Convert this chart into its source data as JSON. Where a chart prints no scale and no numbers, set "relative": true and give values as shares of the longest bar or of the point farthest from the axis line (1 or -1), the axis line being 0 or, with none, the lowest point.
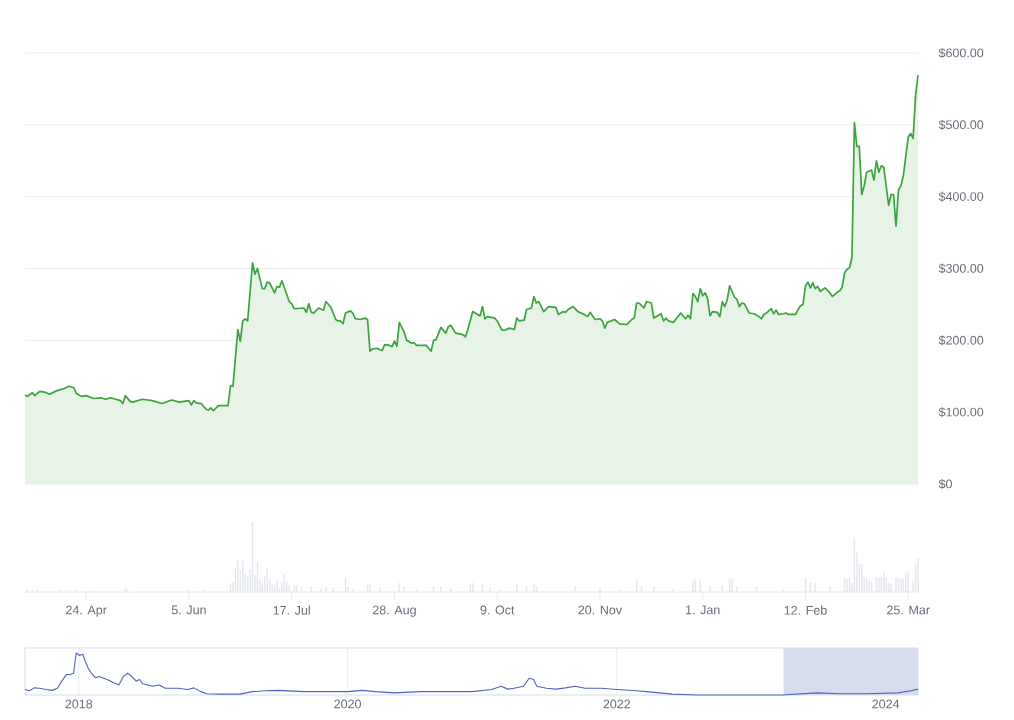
{
  "chart_data": [
    {
      "type": "area",
      "tick_labels": "y",
      "grid": "y",
      "color": "#3da33f",
      "xlim": [
        "2023-03-30",
        "2024-03-29"
      ],
      "ylim": [
        0,
        600
      ],
      "yticks": [
        {
          "value": 0,
          "label": "$0"
        },
        {
          "value": 100,
          "label": "$100.00"
        },
        {
          "value": 200,
          "label": "$200.00"
        },
        {
          "value": 300,
          "label": "$300.00"
        },
        {
          "value": 400,
          "label": "$400.00"
        },
        {
          "value": 500,
          "label": "$500.00"
        },
        {
          "value": 600,
          "label": "$600.00"
        }
      ],
      "x": [
        "2023-03-30",
        "2023-03-31",
        "2023-04-02",
        "2023-04-03",
        "2023-04-05",
        "2023-04-07",
        "2023-04-09",
        "2023-04-12",
        "2023-04-15",
        "2023-04-17",
        "2023-04-19",
        "2023-04-20",
        "2023-04-22",
        "2023-04-24",
        "2023-04-27",
        "2023-04-30",
        "2023-05-02",
        "2023-05-04",
        "2023-05-06",
        "2023-05-08",
        "2023-05-09",
        "2023-05-10",
        "2023-05-12",
        "2023-05-13",
        "2023-05-17",
        "2023-05-21",
        "2023-05-25",
        "2023-05-29",
        "2023-06-01",
        "2023-06-05",
        "2023-06-06",
        "2023-06-07",
        "2023-06-08",
        "2023-06-10",
        "2023-06-12",
        "2023-06-13",
        "2023-06-14",
        "2023-06-15",
        "2023-06-17",
        "2023-06-21",
        "2023-06-22",
        "2023-06-23",
        "2023-06-25",
        "2023-06-26",
        "2023-06-27",
        "2023-06-28",
        "2023-06-29",
        "2023-07-01",
        "2023-07-02",
        "2023-07-03",
        "2023-07-05",
        "2023-07-06",
        "2023-07-07",
        "2023-07-08",
        "2023-07-10",
        "2023-07-11",
        "2023-07-12",
        "2023-07-13",
        "2023-07-16",
        "2023-07-17",
        "2023-07-18",
        "2023-07-22",
        "2023-07-23",
        "2023-07-24",
        "2023-07-25",
        "2023-07-26",
        "2023-07-28",
        "2023-07-30",
        "2023-07-31",
        "2023-08-02",
        "2023-08-04",
        "2023-08-05",
        "2023-08-06",
        "2023-08-07",
        "2023-08-08",
        "2023-08-10",
        "2023-08-11",
        "2023-08-12",
        "2023-08-14",
        "2023-08-16",
        "2023-08-17",
        "2023-08-18",
        "2023-08-19",
        "2023-08-21",
        "2023-08-22",
        "2023-08-23",
        "2023-08-24",
        "2023-08-26",
        "2023-08-27",
        "2023-08-28",
        "2023-08-29",
        "2023-08-30",
        "2023-09-01",
        "2023-09-02",
        "2023-09-04",
        "2023-09-05",
        "2023-09-06",
        "2023-09-10",
        "2023-09-11",
        "2023-09-12",
        "2023-09-13",
        "2023-09-14",
        "2023-09-16",
        "2023-09-18",
        "2023-09-19",
        "2023-09-20",
        "2023-09-22",
        "2023-09-25",
        "2023-09-26",
        "2023-09-27",
        "2023-09-29",
        "2023-10-01",
        "2023-10-02",
        "2023-10-03",
        "2023-10-04",
        "2023-10-05",
        "2023-10-08",
        "2023-10-09",
        "2023-10-11",
        "2023-10-12",
        "2023-10-14",
        "2023-10-16",
        "2023-10-17",
        "2023-10-18",
        "2023-10-20",
        "2023-10-21",
        "2023-10-23",
        "2023-10-24",
        "2023-10-25",
        "2023-10-26",
        "2023-10-28",
        "2023-10-30",
        "2023-11-02",
        "2023-11-03",
        "2023-11-05",
        "2023-11-06",
        "2023-11-07",
        "2023-11-09",
        "2023-11-11",
        "2023-11-13",
        "2023-11-15",
        "2023-11-16",
        "2023-11-18",
        "2023-11-20",
        "2023-11-21",
        "2023-11-22",
        "2023-11-23",
        "2023-11-26",
        "2023-11-28",
        "2023-12-01",
        "2023-12-03",
        "2023-12-04",
        "2023-12-05",
        "2023-12-06",
        "2023-12-08",
        "2023-12-09",
        "2023-12-11",
        "2023-12-12",
        "2023-12-15",
        "2023-12-16",
        "2023-12-17",
        "2023-12-18",
        "2023-12-20",
        "2023-12-23",
        "2023-12-25",
        "2023-12-26",
        "2023-12-27",
        "2023-12-28",
        "2023-12-29",
        "2023-12-30",
        "2023-12-31",
        "2024-01-01",
        "2024-01-02",
        "2024-01-03",
        "2024-01-04",
        "2024-01-05",
        "2024-01-07",
        "2024-01-08",
        "2024-01-09",
        "2024-01-10",
        "2024-01-11",
        "2024-01-12",
        "2024-01-14",
        "2024-01-15",
        "2024-01-16",
        "2024-01-17",
        "2024-01-18",
        "2024-01-20",
        "2024-01-22",
        "2024-01-24",
        "2024-01-25",
        "2024-01-26",
        "2024-01-27",
        "2024-01-29",
        "2024-01-30",
        "2024-01-31",
        "2024-02-01",
        "2024-02-03",
        "2024-02-04",
        "2024-02-05",
        "2024-02-08",
        "2024-02-09",
        "2024-02-10",
        "2024-02-11",
        "2024-02-12",
        "2024-02-13",
        "2024-02-14",
        "2024-02-15",
        "2024-02-16",
        "2024-02-17",
        "2024-02-18",
        "2024-02-20",
        "2024-02-22",
        "2024-02-23",
        "2024-02-25",
        "2024-02-26",
        "2024-02-27",
        "2024-02-28",
        "2024-02-29",
        "2024-03-01",
        "2024-03-02",
        "2024-03-03",
        "2024-03-04",
        "2024-03-05",
        "2024-03-06",
        "2024-03-07",
        "2024-03-08",
        "2024-03-10",
        "2024-03-11",
        "2024-03-12",
        "2024-03-13",
        "2024-03-14",
        "2024-03-15",
        "2024-03-17",
        "2024-03-18",
        "2024-03-19",
        "2024-03-20",
        "2024-03-21",
        "2024-03-22",
        "2024-03-23",
        "2024-03-25",
        "2024-03-26",
        "2024-03-27",
        "2024-03-28",
        "2024-03-29"
      ],
      "values": [
        124,
        122,
        127,
        123,
        129,
        128,
        125,
        130,
        133,
        136,
        134,
        126,
        122,
        123,
        119,
        120,
        118,
        120,
        118,
        116,
        112,
        123,
        115,
        114,
        118,
        116,
        112,
        117,
        114,
        116,
        110,
        116,
        113,
        112,
        104,
        103,
        106,
        102,
        109,
        109,
        137,
        136,
        215,
        199,
        227,
        230,
        227,
        308,
        292,
        300,
        272,
        272,
        281,
        280,
        266,
        275,
        274,
        283,
        254,
        251,
        244,
        245,
        239,
        251,
        239,
        238,
        245,
        242,
        254,
        246,
        229,
        227,
        227,
        223,
        238,
        241,
        238,
        230,
        229,
        231,
        229,
        185,
        188,
        189,
        187,
        186,
        194,
        193,
        191,
        199,
        192,
        225,
        211,
        200,
        196,
        197,
        193,
        193,
        189,
        185,
        200,
        201,
        218,
        210,
        219,
        221,
        210,
        208,
        205,
        215,
        240,
        236,
        234,
        247,
        230,
        233,
        231,
        227,
        214,
        214,
        217,
        215,
        231,
        227,
        228,
        243,
        245,
        261,
        252,
        254,
        240,
        247,
        246,
        236,
        240,
        239,
        243,
        247,
        240,
        237,
        233,
        239,
        229,
        230,
        227,
        217,
        225,
        229,
        223,
        222,
        229,
        231,
        252,
        252,
        245,
        254,
        252,
        231,
        237,
        227,
        231,
        227,
        225,
        238,
        230,
        235,
        230,
        265,
        261,
        254,
        272,
        262,
        266,
        258,
        234,
        240,
        239,
        233,
        254,
        247,
        256,
        276,
        260,
        257,
        247,
        252,
        251,
        238,
        237,
        233,
        230,
        236,
        238,
        244,
        237,
        242,
        236,
        237,
        238,
        236,
        236,
        243,
        248,
        250,
        276,
        281,
        273,
        280,
        272,
        275,
        268,
        273,
        266,
        261,
        267,
        269,
        274,
        294,
        299,
        301,
        315,
        503,
        470,
        470,
        403,
        415,
        434,
        437,
        423,
        450,
        434,
        443,
        441,
        388,
        403,
        403,
        359,
        409,
        415,
        429,
        483,
        488,
        481,
        541,
        569
      ]
    },
    {
      "type": "bar",
      "relative": true,
      "color": "#e6e8ef",
      "xlim": [
        "2023-03-30",
        "2024-03-29"
      ],
      "xticks": [
        {
          "value": "2023-04-24",
          "label": "24. Apr"
        },
        {
          "value": "2023-06-05",
          "label": "5. Jun"
        },
        {
          "value": "2023-07-17",
          "label": "17. Jul"
        },
        {
          "value": "2023-08-28",
          "label": "28. Aug"
        },
        {
          "value": "2023-10-09",
          "label": "9. Oct"
        },
        {
          "value": "2023-11-20",
          "label": "20. Nov"
        },
        {
          "value": "2024-01-01",
          "label": "1. Jan"
        },
        {
          "value": "2024-02-12",
          "label": "12. Feb"
        },
        {
          "value": "2024-03-25",
          "label": "25. Mar"
        }
      ],
      "x": [
        "2023-03-31",
        "2023-04-02",
        "2023-04-04",
        "2023-04-13",
        "2023-04-16",
        "2023-04-20",
        "2023-04-28",
        "2023-05-10",
        "2023-05-11",
        "2023-06-05",
        "2023-06-11",
        "2023-06-22",
        "2023-06-23",
        "2023-06-24",
        "2023-06-25",
        "2023-06-26",
        "2023-06-27",
        "2023-06-28",
        "2023-06-29",
        "2023-06-30",
        "2023-07-01",
        "2023-07-02",
        "2023-07-03",
        "2023-07-04",
        "2023-07-05",
        "2023-07-06",
        "2023-07-07",
        "2023-07-08",
        "2023-07-09",
        "2023-07-10",
        "2023-07-11",
        "2023-07-12",
        "2023-07-13",
        "2023-07-14",
        "2023-07-15",
        "2023-07-16",
        "2023-07-18",
        "2023-07-19",
        "2023-07-21",
        "2023-07-25",
        "2023-07-29",
        "2023-07-31",
        "2023-08-03",
        "2023-08-08",
        "2023-08-09",
        "2023-08-11",
        "2023-08-17",
        "2023-08-18",
        "2023-08-22",
        "2023-08-30",
        "2023-09-01",
        "2023-09-06",
        "2023-09-13",
        "2023-09-16",
        "2023-09-20",
        "2023-09-28",
        "2023-09-29",
        "2023-10-03",
        "2023-10-06",
        "2023-10-10",
        "2023-10-17",
        "2023-10-21",
        "2023-10-24",
        "2023-10-25",
        "2023-11-10",
        "2023-11-20",
        "2023-11-28",
        "2023-12-05",
        "2023-12-07",
        "2023-12-12",
        "2023-12-20",
        "2023-12-28",
        "2023-12-29",
        "2023-12-31",
        "2024-01-04",
        "2024-01-09",
        "2024-01-12",
        "2024-01-13",
        "2024-01-15",
        "2024-01-23",
        "2024-02-03",
        "2024-02-12",
        "2024-02-14",
        "2024-02-16",
        "2024-02-22",
        "2024-02-28",
        "2024-02-29",
        "2024-03-01",
        "2024-03-02",
        "2024-03-03",
        "2024-03-04",
        "2024-03-05",
        "2024-03-06",
        "2024-03-07",
        "2024-03-08",
        "2024-03-09",
        "2024-03-10",
        "2024-03-12",
        "2024-03-13",
        "2024-03-14",
        "2024-03-15",
        "2024-03-16",
        "2024-03-17",
        "2024-03-18",
        "2024-03-20",
        "2024-03-21",
        "2024-03-22",
        "2024-03-23",
        "2024-03-24",
        "2024-03-25",
        "2024-03-27",
        "2024-03-28",
        "2024-03-29"
      ],
      "values": [
        0.04,
        0.03,
        0.04,
        0.03,
        0.03,
        0.03,
        0.03,
        0.06,
        0.04,
        0.03,
        0.04,
        0.13,
        0.14,
        0.35,
        0.47,
        0.3,
        0.45,
        0.27,
        0.22,
        0.33,
        1,
        0.25,
        0.44,
        0.18,
        0.13,
        0.23,
        0.35,
        0.18,
        0.11,
        0.11,
        0.18,
        0.06,
        0.14,
        0.25,
        0.15,
        0.1,
        0.1,
        0.1,
        0.07,
        0.07,
        0.05,
        0.08,
        0.06,
        0.21,
        0.07,
        0.05,
        0.1,
        0.11,
        0.06,
        0.13,
        0.07,
        0.03,
        0.07,
        0.08,
        0.05,
        0.12,
        0.13,
        0.12,
        0.06,
        0.04,
        0.13,
        0.09,
        0.11,
        0.07,
        0.09,
        0.06,
        0.04,
        0.17,
        0.09,
        0.07,
        0.05,
        0.16,
        0.18,
        0.17,
        0.09,
        0.09,
        0.18,
        0.19,
        0.07,
        0.07,
        0.04,
        0.2,
        0.14,
        0.13,
        0.07,
        0.21,
        0.19,
        0.2,
        0.13,
        0.76,
        0.56,
        0.4,
        0.39,
        0.21,
        0.2,
        0.16,
        0.15,
        0.21,
        0.21,
        0.21,
        0.28,
        0.21,
        0.13,
        0.12,
        0.21,
        0.2,
        0.19,
        0.19,
        0.27,
        0.29,
        0.16,
        0.4,
        0.49
      ]
    },
    {
      "type": "line",
      "relative": true,
      "color": "#4e64bf",
      "grid": "x",
      "xlim": [
        "2017-08-08",
        "2024-03-29"
      ],
      "xticks": [
        {
          "value": "2018-01-01",
          "label": "2018"
        },
        {
          "value": "2020-01-01",
          "label": "2020"
        },
        {
          "value": "2022-01-01",
          "label": "2022"
        },
        {
          "value": "2024-01-01",
          "label": "2024"
        }
      ],
      "bands": [
        {
          "axis": "x",
          "from": "2023-03-30",
          "to": "2024-03-29",
          "color": "#d7ddef"
        }
      ],
      "x": [
        "2017-08-08",
        "2017-08-20",
        "2017-09-02",
        "2017-09-16",
        "2017-10-04",
        "2017-10-21",
        "2017-11-04",
        "2017-11-16",
        "2017-11-29",
        "2017-12-09",
        "2017-12-18",
        "2017-12-25",
        "2018-01-03",
        "2018-01-12",
        "2018-01-17",
        "2018-01-26",
        "2018-02-04",
        "2018-02-16",
        "2018-02-25",
        "2018-03-19",
        "2018-04-06",
        "2018-04-20",
        "2018-05-02",
        "2018-05-14",
        "2018-05-25",
        "2018-06-06",
        "2018-06-15",
        "2018-06-23",
        "2018-07-08",
        "2018-07-20",
        "2018-08-07",
        "2018-08-24",
        "2018-09-28",
        "2018-10-24",
        "2018-11-10",
        "2018-11-28",
        "2018-12-15",
        "2019-01-20",
        "2019-03-14",
        "2019-04-18",
        "2019-05-23",
        "2019-06-27",
        "2019-09-05",
        "2019-10-27",
        "2020-01-01",
        "2020-02-10",
        "2020-03-16",
        "2020-05-08",
        "2020-07-17",
        "2020-10-13",
        "2020-12-04",
        "2021-01-26",
        "2021-02-21",
        "2021-03-11",
        "2021-03-28",
        "2021-04-23",
        "2021-05-08",
        "2021-05-20",
        "2021-05-29",
        "2021-06-24",
        "2021-07-20",
        "2021-08-15",
        "2021-09-10",
        "2021-10-07",
        "2021-11-20",
        "2022-01-02",
        "2022-02-24",
        "2022-03-22",
        "2022-05-31",
        "2022-08-09",
        "2022-12-10",
        "2023-03-25",
        "2023-06-29",
        "2023-08-30",
        "2023-11-08",
        "2024-02-04",
        "2024-03-10",
        "2024-03-29"
      ],
      "values": [
        0.13,
        0.1,
        0.17,
        0.16,
        0.13,
        0.11,
        0.16,
        0.33,
        0.49,
        0.49,
        0.52,
        1,
        0.94,
        0.97,
        0.84,
        0.65,
        0.52,
        0.41,
        0.44,
        0.37,
        0.29,
        0.24,
        0.44,
        0.52,
        0.44,
        0.33,
        0.37,
        0.27,
        0.24,
        0.21,
        0.24,
        0.16,
        0.16,
        0.13,
        0.17,
        0.08,
        0.03,
        0.02,
        0.02,
        0.08,
        0.1,
        0.11,
        0.08,
        0.08,
        0.08,
        0.11,
        0.08,
        0.05,
        0.08,
        0.08,
        0.08,
        0.13,
        0.21,
        0.14,
        0.16,
        0.21,
        0.4,
        0.37,
        0.21,
        0.16,
        0.14,
        0.17,
        0.21,
        0.16,
        0.16,
        0.13,
        0.1,
        0.08,
        0.02,
        0,
        0,
        0,
        0.05,
        0.03,
        0.03,
        0.05,
        0.1,
        0.14
      ]
    }
  ]
}
